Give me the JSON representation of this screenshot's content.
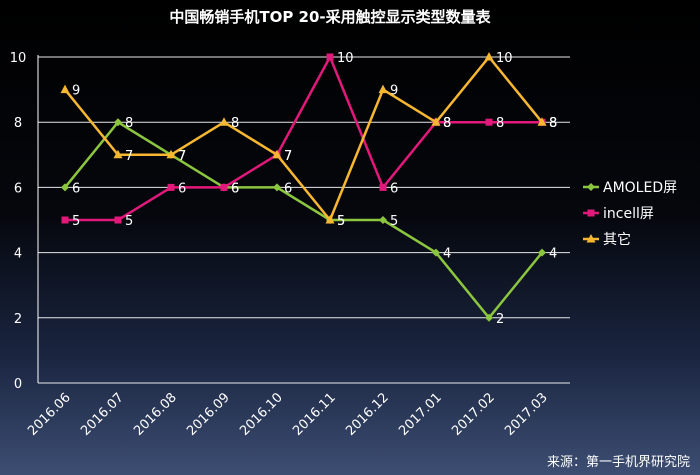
{
  "chart_data": {
    "type": "line",
    "title": "中国畅销手机TOP 20-采用触控显示类型数量表",
    "categories": [
      "2016.06",
      "2016.07",
      "2016.08",
      "2016.09",
      "2016.10",
      "2016.11",
      "2016.12",
      "2017.01",
      "2017.02",
      "2017.03"
    ],
    "ylim": [
      0,
      10
    ],
    "yticks": [
      0,
      2,
      4,
      6,
      8,
      10
    ],
    "grid": true,
    "legend_position": "right",
    "series": [
      {
        "name": "AMOLED屏",
        "color": "#8cc63f",
        "marker": "diamond",
        "values": [
          6,
          8,
          7,
          6,
          6,
          5,
          5,
          4,
          2,
          4
        ]
      },
      {
        "name": "incell屏",
        "color": "#e2197a",
        "marker": "square",
        "values": [
          5,
          5,
          6,
          6,
          7,
          10,
          6,
          8,
          8,
          8
        ]
      },
      {
        "name": "其它",
        "color": "#f7b731",
        "marker": "triangle",
        "values": [
          9,
          7,
          7,
          8,
          7,
          5,
          9,
          8,
          10,
          8
        ]
      }
    ]
  },
  "source": "来源：第一手机界研究院"
}
